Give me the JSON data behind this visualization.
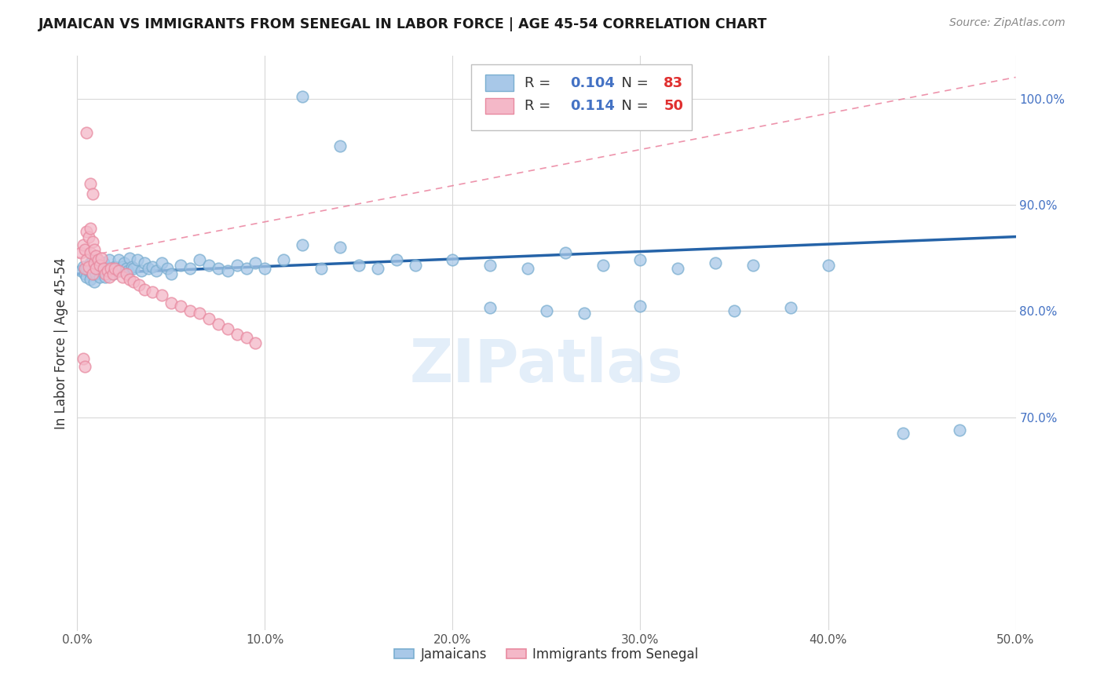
{
  "title": "JAMAICAN VS IMMIGRANTS FROM SENEGAL IN LABOR FORCE | AGE 45-54 CORRELATION CHART",
  "source": "Source: ZipAtlas.com",
  "ylabel": "In Labor Force | Age 45-54",
  "xlim": [
    0.0,
    0.5
  ],
  "ylim": [
    0.5,
    1.04
  ],
  "xticks": [
    0.0,
    0.1,
    0.2,
    0.3,
    0.4,
    0.5
  ],
  "xtick_labels": [
    "0.0%",
    "10.0%",
    "20.0%",
    "30.0%",
    "40.0%",
    "50.0%"
  ],
  "yticks": [
    0.7,
    0.8,
    0.9,
    1.0
  ],
  "ytick_labels": [
    "70.0%",
    "80.0%",
    "90.0%",
    "100.0%"
  ],
  "watermark": "ZIPatlas",
  "legend_r1_val": "0.104",
  "legend_n1_val": "83",
  "legend_r2_val": "0.114",
  "legend_n2_val": "50",
  "blue_color": "#a8c8e8",
  "blue_edge_color": "#7aaed0",
  "pink_color": "#f4b8c8",
  "pink_edge_color": "#e88aa0",
  "blue_line_color": "#2563a8",
  "pink_line_color": "#e87090",
  "blue_val_color": "#4472c4",
  "red_val_color": "#e03030",
  "background_color": "#ffffff",
  "grid_color": "#d8d8d8",
  "blue_x": [
    0.002,
    0.003,
    0.004,
    0.005,
    0.005,
    0.006,
    0.007,
    0.007,
    0.008,
    0.008,
    0.009,
    0.009,
    0.01,
    0.01,
    0.011,
    0.012,
    0.012,
    0.013,
    0.014,
    0.015,
    0.015,
    0.016,
    0.017,
    0.018,
    0.019,
    0.02,
    0.021,
    0.022,
    0.023,
    0.024,
    0.025,
    0.026,
    0.027,
    0.028,
    0.029,
    0.03,
    0.032,
    0.034,
    0.036,
    0.038,
    0.04,
    0.042,
    0.045,
    0.048,
    0.05,
    0.055,
    0.06,
    0.065,
    0.07,
    0.075,
    0.08,
    0.085,
    0.09,
    0.095,
    0.1,
    0.11,
    0.12,
    0.13,
    0.14,
    0.15,
    0.16,
    0.17,
    0.18,
    0.2,
    0.22,
    0.24,
    0.26,
    0.28,
    0.3,
    0.32,
    0.34,
    0.36,
    0.38,
    0.4,
    0.12,
    0.14,
    0.22,
    0.25,
    0.27,
    0.3,
    0.35,
    0.44,
    0.47
  ],
  "blue_y": [
    0.838,
    0.842,
    0.835,
    0.84,
    0.832,
    0.838,
    0.845,
    0.83,
    0.848,
    0.835,
    0.842,
    0.828,
    0.84,
    0.835,
    0.843,
    0.838,
    0.832,
    0.84,
    0.845,
    0.838,
    0.832,
    0.84,
    0.848,
    0.838,
    0.835,
    0.842,
    0.84,
    0.848,
    0.838,
    0.842,
    0.845,
    0.84,
    0.838,
    0.85,
    0.842,
    0.84,
    0.848,
    0.838,
    0.845,
    0.84,
    0.842,
    0.838,
    0.845,
    0.84,
    0.835,
    0.843,
    0.84,
    0.848,
    0.843,
    0.84,
    0.838,
    0.843,
    0.84,
    0.845,
    0.84,
    0.848,
    1.002,
    0.84,
    0.955,
    0.843,
    0.84,
    0.848,
    0.843,
    0.848,
    0.843,
    0.84,
    0.855,
    0.843,
    0.848,
    0.84,
    0.845,
    0.843,
    0.803,
    0.843,
    0.862,
    0.86,
    0.803,
    0.8,
    0.798,
    0.805,
    0.8,
    0.685,
    0.688
  ],
  "pink_x": [
    0.002,
    0.003,
    0.004,
    0.004,
    0.005,
    0.005,
    0.006,
    0.006,
    0.007,
    0.007,
    0.008,
    0.008,
    0.009,
    0.009,
    0.01,
    0.01,
    0.011,
    0.012,
    0.013,
    0.014,
    0.015,
    0.016,
    0.017,
    0.018,
    0.019,
    0.02,
    0.022,
    0.024,
    0.026,
    0.028,
    0.03,
    0.033,
    0.036,
    0.04,
    0.045,
    0.05,
    0.055,
    0.06,
    0.065,
    0.07,
    0.075,
    0.08,
    0.085,
    0.09,
    0.095,
    0.005,
    0.007,
    0.008,
    0.003,
    0.004
  ],
  "pink_y": [
    0.855,
    0.862,
    0.858,
    0.84,
    0.875,
    0.848,
    0.87,
    0.842,
    0.878,
    0.855,
    0.865,
    0.835,
    0.858,
    0.845,
    0.852,
    0.84,
    0.848,
    0.843,
    0.85,
    0.84,
    0.835,
    0.838,
    0.832,
    0.84,
    0.835,
    0.84,
    0.838,
    0.832,
    0.835,
    0.83,
    0.828,
    0.825,
    0.82,
    0.818,
    0.815,
    0.808,
    0.805,
    0.8,
    0.798,
    0.793,
    0.788,
    0.783,
    0.778,
    0.775,
    0.77,
    0.968,
    0.92,
    0.91,
    0.755,
    0.748
  ],
  "blue_trend_x": [
    0.0,
    0.5
  ],
  "blue_trend_y": [
    0.835,
    0.87
  ],
  "pink_trend_x": [
    0.0,
    0.5
  ],
  "pink_trend_y": [
    0.85,
    1.02
  ]
}
